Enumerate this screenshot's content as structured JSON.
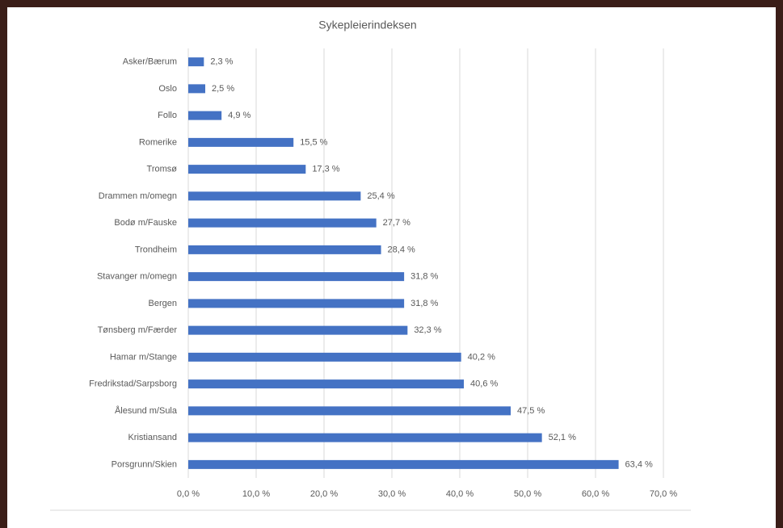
{
  "chart_data": {
    "type": "bar",
    "orientation": "horizontal",
    "title": "Sykepleierindeksen",
    "categories": [
      "Asker/Bærum",
      "Oslo",
      "Follo",
      "Romerike",
      "Tromsø",
      "Drammen m/omegn",
      "Bodø m/Fauske",
      "Trondheim",
      "Stavanger m/omegn",
      "Bergen",
      "Tønsberg m/Færder",
      "Hamar m/Stange",
      "Fredrikstad/Sarpsborg",
      "Ålesund m/Sula",
      "Kristiansand",
      "Porsgrunn/Skien"
    ],
    "values": [
      2.3,
      2.5,
      4.9,
      15.5,
      17.3,
      25.4,
      27.7,
      28.4,
      31.8,
      31.8,
      32.3,
      40.2,
      40.6,
      47.5,
      52.1,
      63.4
    ],
    "value_labels": [
      "2,3 %",
      "2,5 %",
      "4,9 %",
      "15,5 %",
      "17,3 %",
      "25,4 %",
      "27,7 %",
      "28,4 %",
      "31,8 %",
      "31,8 %",
      "32,3 %",
      "40,2 %",
      "40,6 %",
      "47,5 %",
      "52,1 %",
      "63,4 %"
    ],
    "color": "#4472c4",
    "xlim": [
      0,
      70
    ],
    "xticks": [
      {
        "value": 0,
        "label": "0,0 %"
      },
      {
        "value": 10,
        "label": "10,0 %"
      },
      {
        "value": 20,
        "label": "20,0 %"
      },
      {
        "value": 30,
        "label": "30,0 %"
      },
      {
        "value": 40,
        "label": "40,0 %"
      },
      {
        "value": 50,
        "label": "50,0 %"
      },
      {
        "value": 60,
        "label": "60,0 %"
      },
      {
        "value": 70,
        "label": "70,0 %"
      }
    ],
    "grid": true
  }
}
